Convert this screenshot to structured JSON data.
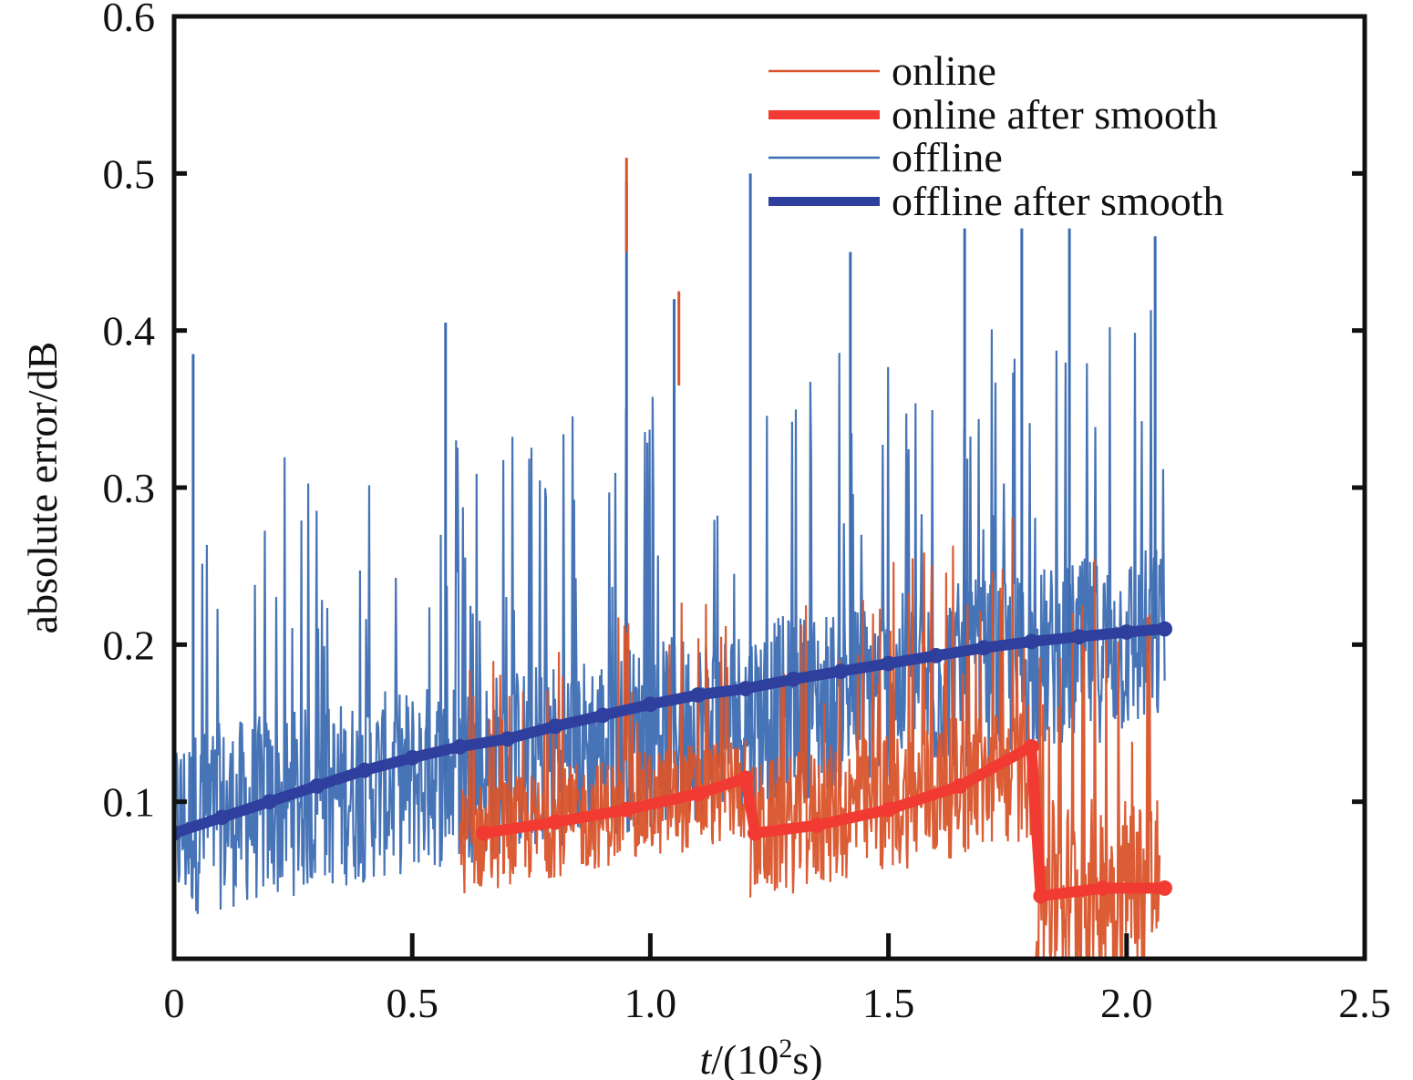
{
  "chart_data": {
    "type": "line",
    "title": "",
    "xlabel": {
      "italic": "t",
      "rest": "/(10",
      "sup": "2",
      "end": "s)"
    },
    "ylabel": "absolute error/dB",
    "xlim": [
      0,
      2.5
    ],
    "ylim": [
      0,
      0.6
    ],
    "x_ticks": [
      0,
      0.5,
      1.0,
      1.5,
      2.0,
      2.5
    ],
    "x_tick_labels": [
      "0",
      "0.5",
      "1.0",
      "1.5",
      "2.0",
      "2.5"
    ],
    "y_ticks": [
      0.1,
      0.2,
      0.3,
      0.4,
      0.5,
      0.6
    ],
    "y_tick_labels": [
      "0.1",
      "0.2",
      "0.3",
      "0.4",
      "0.5",
      "0.6"
    ],
    "grid": false,
    "legend_position": "top-right",
    "series": [
      {
        "name": "online",
        "color": "#d9542b",
        "style": "thin noisy line",
        "segments": [
          {
            "x": [
              0.6,
              1.2
            ],
            "mean": [
              0.075,
              0.11
            ],
            "noise": 0.035
          },
          {
            "x": [
              1.21,
              1.8
            ],
            "mean": [
              0.08,
              0.12
            ],
            "noise": 0.045
          },
          {
            "x": [
              1.81,
              2.07
            ],
            "mean": [
              0.04,
              0.05
            ],
            "noise": 0.06
          }
        ],
        "peaks": [
          {
            "x": 0.95,
            "y": 0.51
          },
          {
            "x": 1.06,
            "y": 0.425
          }
        ]
      },
      {
        "name": "online after smooth",
        "color": "#f03a32",
        "style": "thick smoothed line",
        "x": [
          0.65,
          0.8,
          0.95,
          1.1,
          1.2,
          1.22,
          1.35,
          1.5,
          1.65,
          1.8,
          1.82,
          1.95,
          2.08
        ],
        "y": [
          0.08,
          0.087,
          0.095,
          0.105,
          0.115,
          0.08,
          0.085,
          0.095,
          0.11,
          0.135,
          0.04,
          0.045,
          0.045
        ]
      },
      {
        "name": "offline",
        "color": "#3d6db2",
        "style": "thin noisy line",
        "x_range": [
          0,
          2.08
        ],
        "mean": [
          0.085,
          0.205
        ],
        "noise": 0.06,
        "peaks": [
          {
            "x": 0.04,
            "y": 0.385
          },
          {
            "x": 0.57,
            "y": 0.405
          },
          {
            "x": 0.95,
            "y": 0.495
          },
          {
            "x": 1.05,
            "y": 0.42
          },
          {
            "x": 1.21,
            "y": 0.5
          },
          {
            "x": 1.42,
            "y": 0.45
          },
          {
            "x": 1.66,
            "y": 0.465
          },
          {
            "x": 1.78,
            "y": 0.465
          },
          {
            "x": 1.88,
            "y": 0.465
          },
          {
            "x": 2.06,
            "y": 0.46
          }
        ]
      },
      {
        "name": "offline after smooth",
        "color": "#2f3f9e",
        "style": "thick smoothed line",
        "x": [
          0,
          0.1,
          0.2,
          0.3,
          0.4,
          0.5,
          0.6,
          0.7,
          0.8,
          0.9,
          1.0,
          1.1,
          1.2,
          1.3,
          1.4,
          1.5,
          1.6,
          1.7,
          1.8,
          1.9,
          2.0,
          2.08
        ],
        "y": [
          0.08,
          0.09,
          0.1,
          0.11,
          0.12,
          0.128,
          0.135,
          0.14,
          0.148,
          0.155,
          0.162,
          0.168,
          0.172,
          0.178,
          0.183,
          0.188,
          0.193,
          0.198,
          0.202,
          0.205,
          0.208,
          0.21
        ]
      }
    ]
  }
}
